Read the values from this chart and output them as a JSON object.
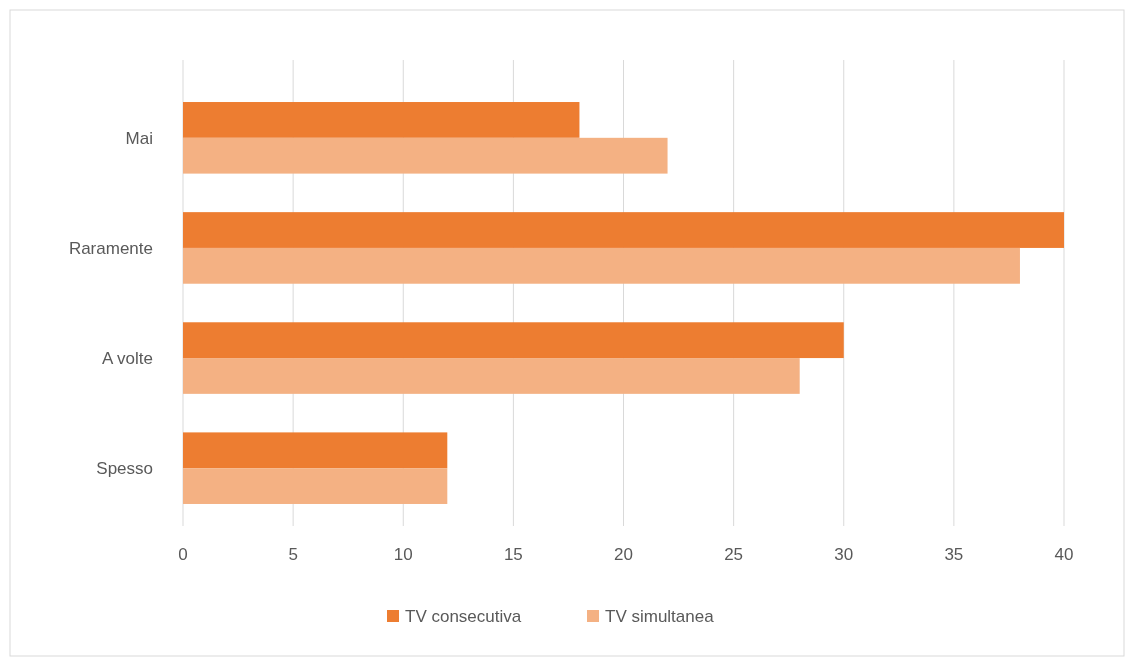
{
  "chart_data": {
    "type": "bar",
    "orientation": "horizontal",
    "categories": [
      "Mai",
      "Raramente",
      "A volte",
      "Spesso"
    ],
    "series": [
      {
        "name": "TV consecutiva",
        "color": "#ed7d31",
        "values": [
          18,
          40,
          30,
          12
        ]
      },
      {
        "name": "TV simultanea",
        "color": "#f4b183",
        "values": [
          22,
          38,
          28,
          12
        ]
      }
    ],
    "xlim": [
      0,
      40
    ],
    "xticks": [
      0,
      5,
      10,
      15,
      20,
      25,
      30,
      35,
      40
    ],
    "grid": "x",
    "legend": "bottom"
  }
}
